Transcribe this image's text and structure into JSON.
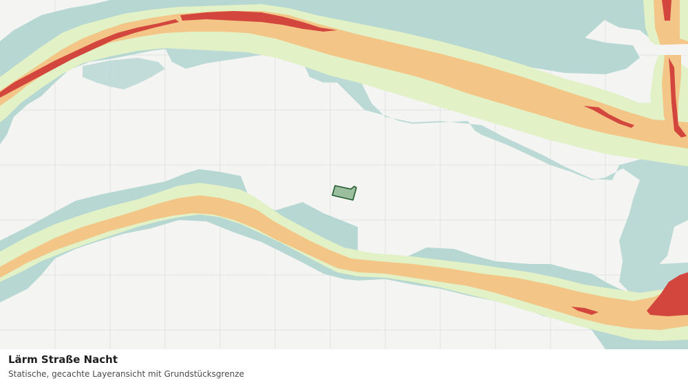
{
  "legend": {
    "title": "Lärm Straße Nacht",
    "subtitle": "Statische, gecachte Layeransicht mit Grundstücksgrenze"
  },
  "colors": {
    "background": "#f4f5f3",
    "grid": "#e1e4e0",
    "zone_outer": "#b7d7d3",
    "zone_low": "#e2f1c6",
    "zone_mid": "#f3c587",
    "zone_high": "#d3463e",
    "parcel_fill": "#9bbf9d",
    "parcel_outline": "#1f5a2c"
  },
  "layers": [
    "noise-zone-outer",
    "noise-zone-low",
    "noise-zone-mid",
    "noise-zone-high",
    "parcel-boundary"
  ]
}
